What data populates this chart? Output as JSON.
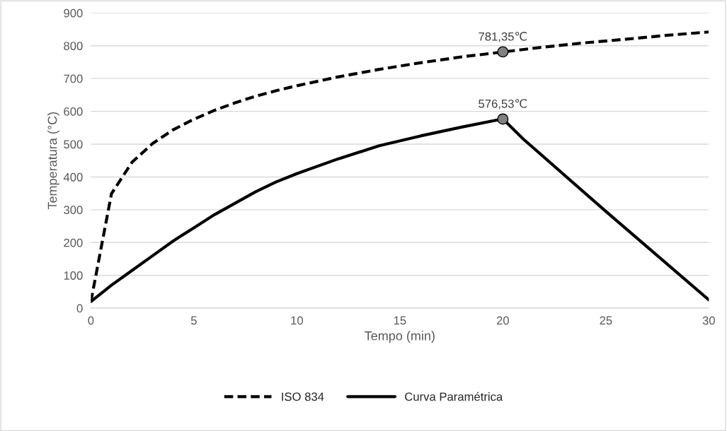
{
  "chart_data": {
    "type": "line",
    "xlabel": "Tempo (min)",
    "ylabel": "Temperatura (°C)",
    "xlim": [
      0,
      30
    ],
    "xticks": [
      0,
      5,
      10,
      15,
      20,
      25,
      30
    ],
    "ylim": [
      0,
      900
    ],
    "yticks": [
      0,
      100,
      200,
      300,
      400,
      500,
      600,
      700,
      800,
      900
    ],
    "grid": "y",
    "legend": "bottom",
    "series": [
      {
        "name": "ISO 834",
        "color": "#000000",
        "line_style": "dashed",
        "x": [
          0,
          1,
          2,
          3,
          4,
          5,
          6,
          7,
          8,
          9,
          10,
          12,
          14,
          16,
          18,
          20,
          22,
          24,
          26,
          28,
          30
        ],
        "values": [
          20,
          349,
          445,
          502,
          544,
          576,
          603,
          626,
          646,
          663,
          678,
          705,
          728,
          748,
          766,
          781,
          796,
          809,
          820,
          832,
          842
        ]
      },
      {
        "name": "Curva Paramétrica",
        "color": "#000000",
        "line_style": "solid",
        "x": [
          0,
          1,
          2,
          3,
          4,
          5,
          6,
          7,
          8,
          9,
          10,
          12,
          14,
          16,
          18,
          20,
          21,
          25,
          30
        ],
        "values": [
          20,
          70,
          115,
          160,
          205,
          245,
          285,
          320,
          355,
          385,
          410,
          455,
          495,
          525,
          552,
          577,
          515,
          295,
          25
        ]
      },
      {
        "type": "scatter",
        "color": "#808080",
        "marker": "circle",
        "x": [
          20,
          20
        ],
        "values": [
          781.35,
          576.53
        ],
        "value_labels": [
          "781,35℃",
          "576,53℃"
        ]
      }
    ]
  }
}
